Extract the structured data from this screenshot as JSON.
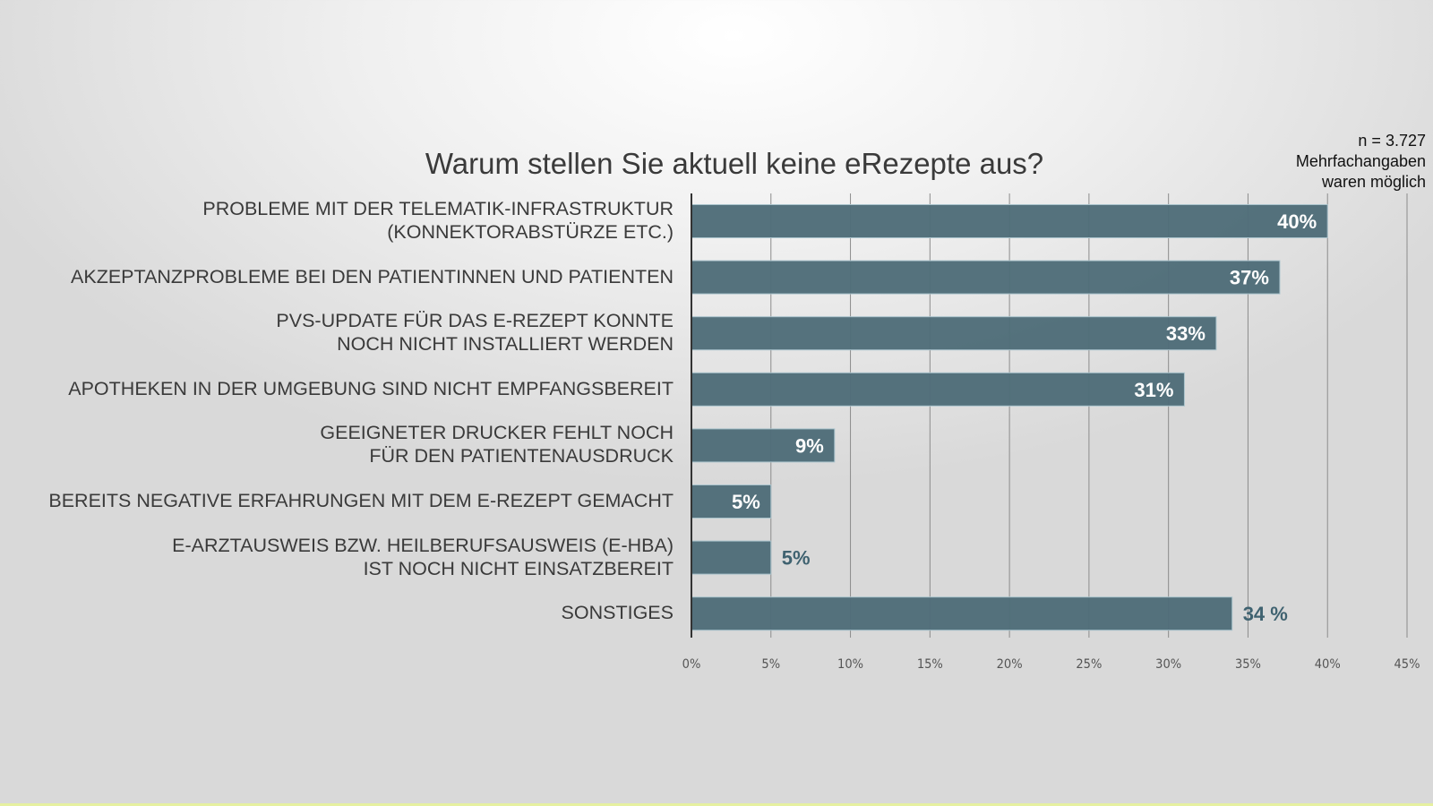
{
  "chart_data": {
    "type": "bar",
    "orientation": "horizontal",
    "title": "Warum stellen Sie aktuell keine eRezepte aus?",
    "note": [
      "n = 3.727",
      "Mehrfachangaben",
      "waren möglich"
    ],
    "categories": [
      [
        "PROBLEME MIT DER TELEMATIK-INFRASTRUKTUR",
        "(KONNEKTORABSTÜRZE ETC.)"
      ],
      [
        "AKZEPTANZPROBLEME BEI DEN PATIENTINNEN UND PATIENTEN"
      ],
      [
        "PVS-UPDATE FÜR DAS E-REZEPT KONNTE",
        "NOCH NICHT INSTALLIERT WERDEN"
      ],
      [
        "APOTHEKEN IN DER UMGEBUNG SIND NICHT EMPFANGSBEREIT"
      ],
      [
        "GEEIGNETER DRUCKER FEHLT NOCH",
        "FÜR DEN PATIENTENAUSDRUCK"
      ],
      [
        "BEREITS NEGATIVE ERFAHRUNGEN MIT DEM E-REZEPT GEMACHT"
      ],
      [
        "E-ARZTAUSWEIS BZW. HEILBERUFSAUSWEIS (E-HBA)",
        "IST NOCH NICHT EINSATZBEREIT"
      ],
      [
        "SONSTIGES"
      ]
    ],
    "values": [
      40,
      37,
      33,
      31,
      9,
      5,
      5,
      34
    ],
    "data_labels": [
      "40%",
      "37%",
      "33%",
      "31%",
      "9%",
      "5%",
      "5%",
      "34 %"
    ],
    "label_inside": [
      true,
      true,
      true,
      true,
      true,
      true,
      false,
      false
    ],
    "xlim": [
      0,
      45
    ],
    "xticks": [
      "0%",
      "5%",
      "10%",
      "15%",
      "20%",
      "25%",
      "30%",
      "35%",
      "40%",
      "45%"
    ],
    "grid": true,
    "colors": {
      "bar": "#4f6d79",
      "bar_edge": "#a9c3cc",
      "label_out": "#3f6270",
      "grid": "#8c8c8c"
    }
  }
}
